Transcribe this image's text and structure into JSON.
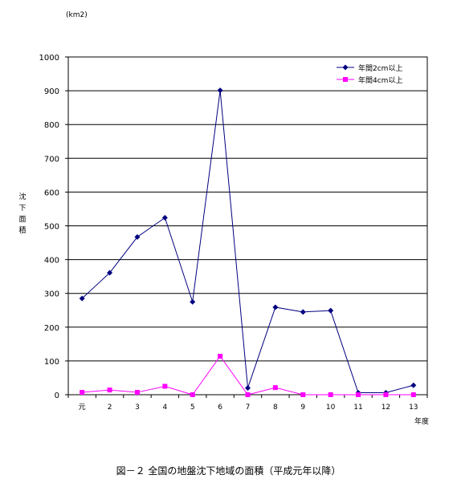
{
  "chart_data": {
    "type": "line",
    "unit_label": "(km2)",
    "ylabel": "沈下面積",
    "xlabel": "年度",
    "caption": "図－２ 全国の地盤沈下地域の面積（平成元年以降）",
    "categories": [
      "元",
      "2",
      "3",
      "4",
      "5",
      "6",
      "7",
      "8",
      "9",
      "10",
      "11",
      "12",
      "13"
    ],
    "yticks": [
      "0",
      "100",
      "200",
      "300",
      "400",
      "500",
      "600",
      "700",
      "800",
      "900",
      "1000"
    ],
    "ylim": [
      0,
      1000
    ],
    "grid": true,
    "legend_position": "top-right",
    "series": [
      {
        "name": "年間2cm以上",
        "color": "#000080",
        "marker": "diamond",
        "values": [
          285,
          361,
          467,
          524,
          275,
          901,
          20,
          259,
          245,
          249,
          6,
          6,
          28
        ]
      },
      {
        "name": "年間4cm以上",
        "color": "#ff00ff",
        "marker": "square",
        "values": [
          7,
          14,
          7,
          25,
          0,
          114,
          0,
          21,
          0,
          0,
          0,
          0,
          0
        ]
      }
    ]
  }
}
